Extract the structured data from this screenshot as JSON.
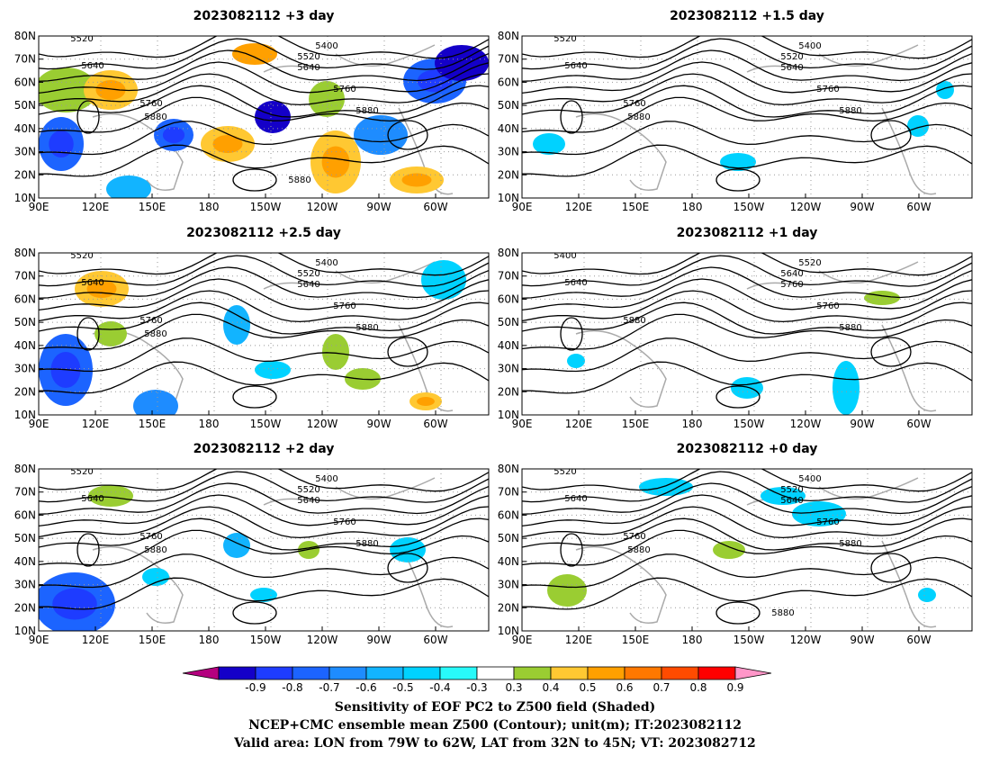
{
  "panels": [
    {
      "title": "2023082112 +3 day",
      "labels": [
        "5520",
        "5400",
        "5520",
        "5640",
        "5640",
        "5760",
        "5760",
        "5880",
        "5880",
        "5880"
      ]
    },
    {
      "title": "2023082112 +1.5 day",
      "labels": [
        "5520",
        "5400",
        "5520",
        "5640",
        "5640",
        "5760",
        "5760",
        "5880",
        "5880"
      ]
    },
    {
      "title": "2023082112 +2.5 day",
      "labels": [
        "5520",
        "5400",
        "5520",
        "5640",
        "5640",
        "5760",
        "5760",
        "5880",
        "5880"
      ]
    },
    {
      "title": "2023082112 +1 day",
      "labels": [
        "5400",
        "5520",
        "5640",
        "5640",
        "5760",
        "5760",
        "5880",
        "5880"
      ]
    },
    {
      "title": "2023082112 +2 day",
      "labels": [
        "5520",
        "5400",
        "5520",
        "5640",
        "5640",
        "5760",
        "5760",
        "5880",
        "5880"
      ]
    },
    {
      "title": "2023082112 +0 day",
      "labels": [
        "5520",
        "5400",
        "5520",
        "5640",
        "5640",
        "5760",
        "5760",
        "5880",
        "5880",
        "5880"
      ]
    }
  ],
  "axes": {
    "lat_ticks": [
      "80N",
      "70N",
      "60N",
      "50N",
      "40N",
      "30N",
      "20N",
      "10N"
    ],
    "lon_ticks": [
      "90E",
      "120E",
      "150E",
      "180",
      "150W",
      "120W",
      "90W",
      "60W"
    ]
  },
  "colorbar": {
    "labels": [
      "-0.9",
      "-0.8",
      "-0.7",
      "-0.6",
      "-0.5",
      "-0.4",
      "-0.3",
      "0.3",
      "0.4",
      "0.5",
      "0.6",
      "0.7",
      "0.8",
      "0.9"
    ],
    "colors": [
      "#b4007f",
      "#1400c8",
      "#1e3cff",
      "#1c64ff",
      "#1e8cff",
      "#12b4ff",
      "#00d2ff",
      "#28fafa",
      "#ffffff",
      "#9acd32",
      "#ffc832",
      "#ffa000",
      "#ff7800",
      "#ff4b00",
      "#ff0000",
      "#ff96c8"
    ]
  },
  "caption": {
    "line1": "Sensitivity of EOF PC2 to Z500 field (Shaded)",
    "line2": "NCEP+CMC ensemble mean Z500 (Contour); unit(m); IT:2023082112",
    "line3": "Valid area: LON from 79W to 62W, LAT from 32N to 45N; VT: 2023082712"
  }
}
